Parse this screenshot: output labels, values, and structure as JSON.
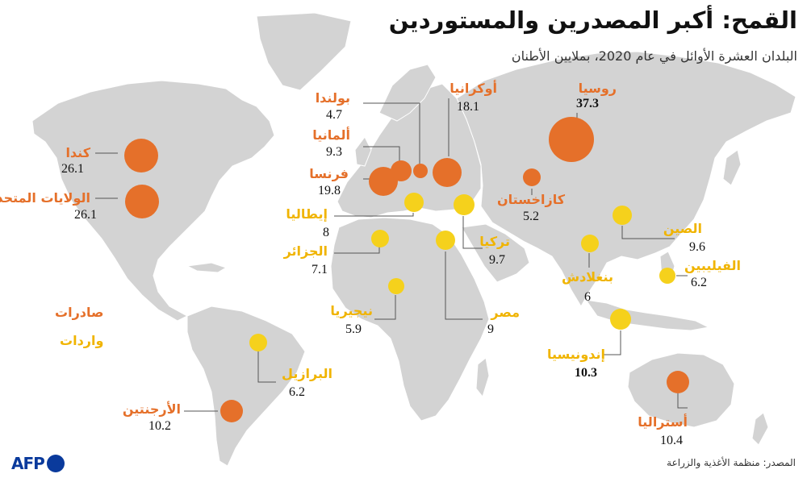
{
  "title": "القمح: أكبر المصدرين والمستوردين",
  "subtitle": "البلدان العشرة الأوائل في عام 2020، بملايين الأطنان",
  "source": "المصدر: منظمة الأغذية والزراعة",
  "logo": "AFP",
  "colors": {
    "exporter": "#e5702a",
    "importer": "#f5d11c",
    "land": "#d3d3d3",
    "leader": "#555555"
  },
  "legend": {
    "exports": "صادرات",
    "imports": "واردات"
  },
  "exporters": [
    {
      "key": "canada",
      "name": "كندا",
      "value": "26.1"
    },
    {
      "key": "usa",
      "name": "الولايات المتحدة",
      "value": "26.1"
    },
    {
      "key": "poland",
      "name": "بولندا",
      "value": "4.7"
    },
    {
      "key": "germany",
      "name": "ألمانيا",
      "value": "9.3"
    },
    {
      "key": "france",
      "name": "فرنسا",
      "value": "19.8"
    },
    {
      "key": "ukraine",
      "name": "أوكرانيا",
      "value": "18.1"
    },
    {
      "key": "russia",
      "name": "روسيا",
      "value": "37.3"
    },
    {
      "key": "kazakhstan",
      "name": "كازاخستان",
      "value": "5.2"
    },
    {
      "key": "argentina",
      "name": "الأرجنتين",
      "value": "10.2"
    },
    {
      "key": "australia",
      "name": "أستراليا",
      "value": "10.4"
    }
  ],
  "importers": [
    {
      "key": "italy",
      "name": "إيطاليا",
      "value": "8"
    },
    {
      "key": "algeria",
      "name": "الجزائر",
      "value": "7.1"
    },
    {
      "key": "turkey",
      "name": "تركيا",
      "value": "9.7"
    },
    {
      "key": "egypt",
      "name": "مصر",
      "value": "9"
    },
    {
      "key": "nigeria",
      "name": "نيجيريا",
      "value": "5.9"
    },
    {
      "key": "china",
      "name": "الصين",
      "value": "9.6"
    },
    {
      "key": "bangladesh",
      "name": "بنغلادش",
      "value": "6"
    },
    {
      "key": "philippines",
      "name": "الفيليبين",
      "value": "6.2"
    },
    {
      "key": "indonesia",
      "name": "إندونيسيا",
      "value": "10.3"
    },
    {
      "key": "brazil",
      "name": "البرازيل",
      "value": "6.2"
    }
  ]
}
